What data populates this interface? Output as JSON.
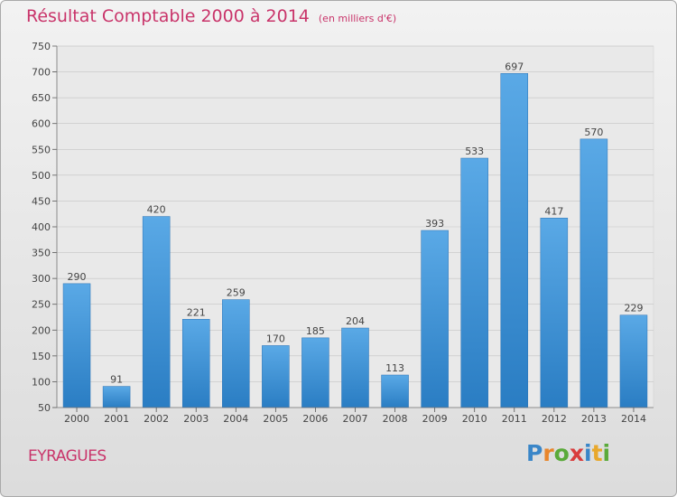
{
  "chart_data": {
    "type": "bar",
    "title": "Résultat Comptable 2000 à 2014",
    "subtitle": "(en milliers d'€)",
    "categories": [
      "2000",
      "2001",
      "2002",
      "2003",
      "2004",
      "2005",
      "2006",
      "2007",
      "2008",
      "2009",
      "2010",
      "2011",
      "2012",
      "2013",
      "2014"
    ],
    "values": [
      290,
      91,
      420,
      221,
      259,
      170,
      185,
      204,
      113,
      393,
      533,
      697,
      417,
      570,
      229
    ],
    "yticks": [
      50,
      100,
      150,
      200,
      250,
      300,
      350,
      400,
      450,
      500,
      550,
      600,
      650,
      700,
      750
    ],
    "ylim": [
      50,
      750
    ],
    "xlabel": "",
    "ylabel": "",
    "grid": true,
    "bar_color": "#3d8fd6"
  },
  "footer": {
    "location": "EYRAGUES",
    "brand": [
      "P",
      "r",
      "o",
      "x",
      "i",
      "t",
      "i"
    ],
    "brand_colors": [
      "#3a86c8",
      "#e8862c",
      "#5aaa3a",
      "#d93c3c",
      "#3a86c8",
      "#e8a82c",
      "#5aaa3a"
    ]
  }
}
